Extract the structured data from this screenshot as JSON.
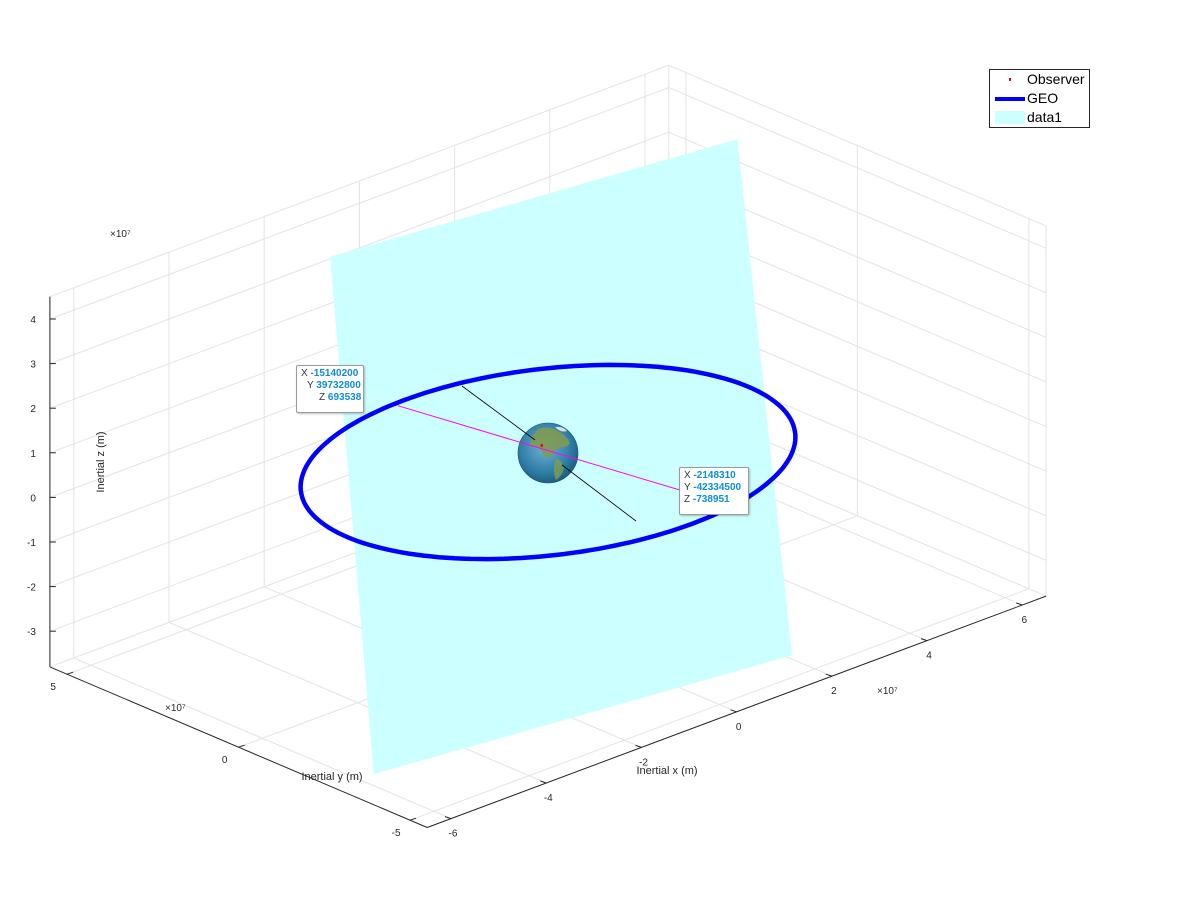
{
  "chart_data": {
    "type": "3d-line",
    "exponents": {
      "x": "×10⁷",
      "y": "×10⁷",
      "z": "×10⁷"
    },
    "xlabel": "Inertial x (m)",
    "ylabel": "Inertial y (m)",
    "zlabel": "Inertial z (m)",
    "xlim": [
      -6.5,
      6.5
    ],
    "ylim": [
      -5.5,
      5.5
    ],
    "zlim": [
      -3.8,
      4.5
    ],
    "x_ticks": [
      "-6",
      "-4",
      "-2",
      "0",
      "2",
      "4",
      "6"
    ],
    "y_ticks": [
      "-5",
      "0",
      "5"
    ],
    "z_ticks": [
      "-3",
      "-2",
      "-1",
      "0",
      "1",
      "2",
      "3",
      "4"
    ],
    "grid": true,
    "legend": {
      "placement": "top-right",
      "entries": [
        {
          "name": "Observer",
          "style": "point",
          "color": "#e00000"
        },
        {
          "name": "GEO",
          "style": "line",
          "color": "#0000ff"
        },
        {
          "name": "data1",
          "style": "patch",
          "color": "#ccffff"
        }
      ]
    },
    "series": [
      {
        "name": "GEO",
        "kind": "circular-orbit",
        "radius": 42164000,
        "center": [
          0,
          0,
          0
        ],
        "inclination_deg": 0
      },
      {
        "name": "Observer",
        "kind": "point",
        "value": [
          -600000,
          1000000,
          3500000
        ]
      },
      {
        "name": "data1",
        "kind": "plane-patch",
        "corners": [
          [
            -22000000.0,
            33000000.0,
            44000000.0
          ],
          [
            65000000.0,
            35000000.0,
            35000000.0
          ],
          [
            21000000.0,
            -42000000.0,
            -38000000.0
          ],
          [
            -64000000.0,
            -38000000.0,
            -32000000.0
          ]
        ]
      }
    ],
    "datatips": [
      {
        "X": "-15140200",
        "Y": "39732800",
        "Z": "693538"
      },
      {
        "X": "-2148310",
        "Y": "-42334500",
        "Z": "-738951"
      }
    ],
    "colors": {
      "orbit": "#0000ff",
      "patch": "#ccffff",
      "observer": "#e00000",
      "grid": "#e3e3e3",
      "earth": "#2f7fa8",
      "line_of_sight": "#ff00ff"
    }
  }
}
